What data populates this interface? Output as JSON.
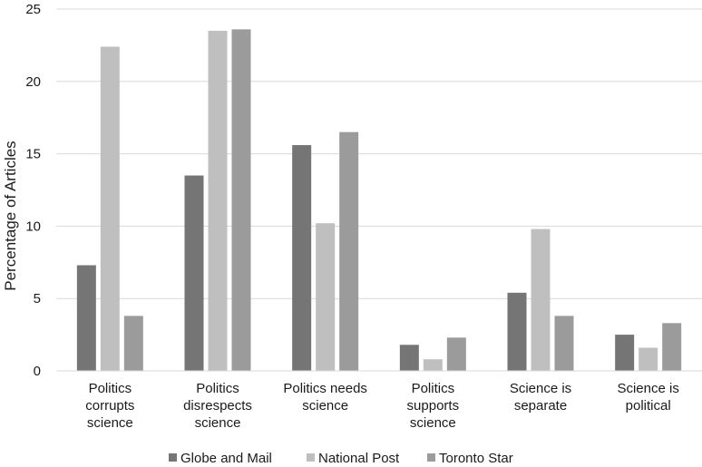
{
  "chart_data": {
    "type": "bar",
    "ylabel": "Percentage of Articles",
    "xlabel": "",
    "ylim": [
      0,
      25
    ],
    "yticks": [
      "0",
      "5",
      "10",
      "15",
      "20",
      "25"
    ],
    "grid": true,
    "legend_position": "bottom",
    "categories": [
      [
        "Politics",
        "corrupts",
        "science"
      ],
      [
        "Politics",
        "disrespects",
        "science"
      ],
      [
        "Politics needs",
        "science"
      ],
      [
        "Politics",
        "supports",
        "science"
      ],
      [
        "Science is",
        "separate"
      ],
      [
        "Science is",
        "political"
      ]
    ],
    "series": [
      {
        "name": "Globe and Mail",
        "color": "#757575",
        "values": [
          7.3,
          13.5,
          15.6,
          1.8,
          5.4,
          2.5
        ]
      },
      {
        "name": "National Post",
        "color": "#bfbfbf",
        "values": [
          22.4,
          23.5,
          10.2,
          0.8,
          9.8,
          1.6
        ]
      },
      {
        "name": "Toronto Star",
        "color": "#9b9b9b",
        "values": [
          3.8,
          23.6,
          16.5,
          2.3,
          3.8,
          3.3
        ]
      }
    ]
  }
}
